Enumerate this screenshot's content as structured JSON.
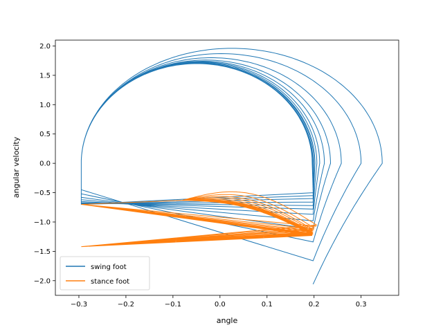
{
  "chart_data": {
    "type": "line",
    "title": "",
    "xlabel": "angle",
    "ylabel": "angular velocity",
    "xlim": [
      -0.35,
      0.38
    ],
    "ylim": [
      -2.25,
      2.1
    ],
    "xticks": [
      -0.3,
      -0.2,
      -0.1,
      0.0,
      0.1,
      0.2,
      0.3
    ],
    "xtick_labels": [
      "−0.3",
      "−0.2",
      "−0.1",
      "0.0",
      "0.1",
      "0.2",
      "0.3"
    ],
    "yticks": [
      -2.0,
      -1.5,
      -1.0,
      -0.5,
      0.0,
      0.5,
      1.0,
      1.5,
      2.0
    ],
    "ytick_labels": [
      "−2.0",
      "−1.5",
      "−1.0",
      "−0.5",
      "0.0",
      "0.5",
      "1.0",
      "1.5",
      "2.0"
    ],
    "grid": false,
    "legend_position": "lower-left",
    "series": [
      {
        "name": "swing foot",
        "color": "#1f77b4",
        "cycles": [
          {
            "start": [
              0.198,
              -2.06
            ],
            "peak": 1.96,
            "x_max": 0.345,
            "end": [
              -0.295,
              -0.45
            ]
          },
          {
            "start": [
              0.198,
              -1.66
            ],
            "peak": 1.87,
            "x_max": 0.3,
            "end": [
              -0.295,
              -0.52
            ]
          },
          {
            "start": [
              0.198,
              -1.34
            ],
            "peak": 1.8,
            "x_max": 0.258,
            "end": [
              -0.295,
              -0.58
            ]
          },
          {
            "start": [
              0.198,
              -1.12
            ],
            "peak": 1.76,
            "x_max": 0.235,
            "end": [
              -0.295,
              -0.62
            ]
          },
          {
            "start": [
              0.198,
              -0.98
            ],
            "peak": 1.74,
            "x_max": 0.222,
            "end": [
              -0.295,
              -0.65
            ]
          },
          {
            "start": [
              0.198,
              -0.87
            ],
            "peak": 1.73,
            "x_max": 0.212,
            "end": [
              -0.295,
              -0.67
            ]
          },
          {
            "start": [
              0.198,
              -0.78
            ],
            "peak": 1.72,
            "x_max": 0.206,
            "end": [
              -0.295,
              -0.68
            ]
          },
          {
            "start": [
              0.198,
              -0.72
            ],
            "peak": 1.71,
            "x_max": 0.202,
            "end": [
              -0.295,
              -0.69
            ]
          },
          {
            "start": [
              0.198,
              -0.66
            ],
            "peak": 1.71,
            "x_max": 0.2,
            "end": [
              -0.295,
              -0.7
            ]
          },
          {
            "start": [
              0.198,
              -0.6
            ],
            "peak": 1.7,
            "x_max": 0.198,
            "end": [
              -0.295,
              -0.7
            ]
          },
          {
            "start": [
              0.198,
              -0.55
            ],
            "peak": 1.7,
            "x_max": 0.197,
            "end": [
              -0.295,
              -0.7
            ]
          },
          {
            "start": [
              0.198,
              -0.5
            ],
            "peak": 1.7,
            "x_max": 0.196,
            "end": [
              -0.295,
              -0.7
            ]
          }
        ]
      },
      {
        "name": "stance foot",
        "color": "#ff7f0e",
        "cycles": [
          {
            "start": [
              -0.295,
              -0.7
            ],
            "peak": -0.45,
            "end": [
              0.205,
              -1.05
            ]
          },
          {
            "start": [
              -0.295,
              -0.7
            ],
            "peak": -0.5,
            "end": [
              0.2,
              -1.1
            ]
          },
          {
            "start": [
              -0.295,
              -0.7
            ],
            "peak": -0.54,
            "end": [
              0.198,
              -1.13
            ]
          },
          {
            "start": [
              -0.295,
              -0.7
            ],
            "peak": -0.57,
            "end": [
              0.197,
              -1.15
            ]
          },
          {
            "start": [
              -0.295,
              -0.7
            ],
            "peak": -0.6,
            "end": [
              0.196,
              -1.17
            ]
          },
          {
            "start": [
              -0.295,
              -0.7
            ],
            "peak": -0.62,
            "end": [
              0.196,
              -1.18
            ]
          },
          {
            "start": [
              -0.295,
              -0.7
            ],
            "peak": -0.63,
            "end": [
              0.196,
              -1.19
            ]
          },
          {
            "start": [
              -0.295,
              -0.7
            ],
            "peak": -0.64,
            "end": [
              0.196,
              -1.2
            ]
          },
          {
            "start": [
              -0.295,
              -0.7
            ],
            "peak": -0.65,
            "end": [
              0.196,
              -1.2
            ]
          },
          {
            "start": [
              -0.295,
              -0.7
            ],
            "peak": -0.66,
            "end": [
              0.196,
              -1.21
            ]
          },
          {
            "start": [
              -0.295,
              -0.7
            ],
            "peak": -0.66,
            "end": [
              0.196,
              -1.21
            ]
          },
          {
            "start": [
              -0.295,
              -0.7
            ],
            "peak": -0.67,
            "end": [
              0.196,
              -1.21
            ]
          }
        ],
        "return_point": [
          -0.295,
          -1.42
        ]
      }
    ]
  }
}
